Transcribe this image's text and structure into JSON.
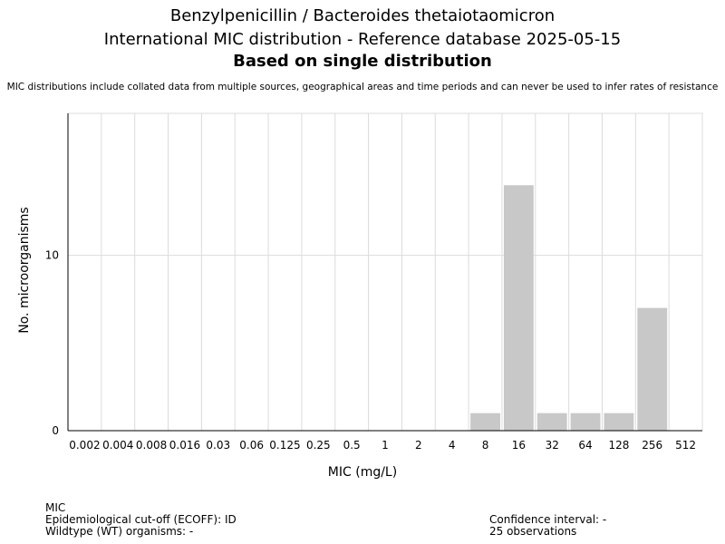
{
  "header": {
    "title_line1": "Benzylpenicillin / Bacteroides thetaiotaomicron",
    "title_line2": "International MIC distribution - Reference database 2025-05-15",
    "title_line3": "Based on single distribution",
    "note": "MIC distributions include collated data from multiple sources, geographical areas and time periods and can never be used to infer rates of resistance"
  },
  "chart_data": {
    "type": "bar",
    "categories": [
      "0.002",
      "0.004",
      "0.008",
      "0.016",
      "0.03",
      "0.06",
      "0.125",
      "0.25",
      "0.5",
      "1",
      "2",
      "4",
      "8",
      "16",
      "32",
      "64",
      "128",
      "256",
      "512"
    ],
    "values": [
      0,
      0,
      0,
      0,
      0,
      0,
      0,
      0,
      0,
      0,
      0,
      0,
      1,
      14,
      1,
      1,
      1,
      7,
      0
    ],
    "xlabel": "MIC (mg/L)",
    "ylabel": "No. microorganisms",
    "ylim": [
      0,
      18.1
    ],
    "yticks": [
      0,
      10
    ],
    "bar_color": "#c8c8c8",
    "grid": true
  },
  "footer": {
    "left": [
      "MIC",
      "Epidemiological cut-off (ECOFF): ID",
      "Wildtype (WT) organisms:  -"
    ],
    "right": [
      "Confidence interval: -",
      "25 observations"
    ]
  }
}
